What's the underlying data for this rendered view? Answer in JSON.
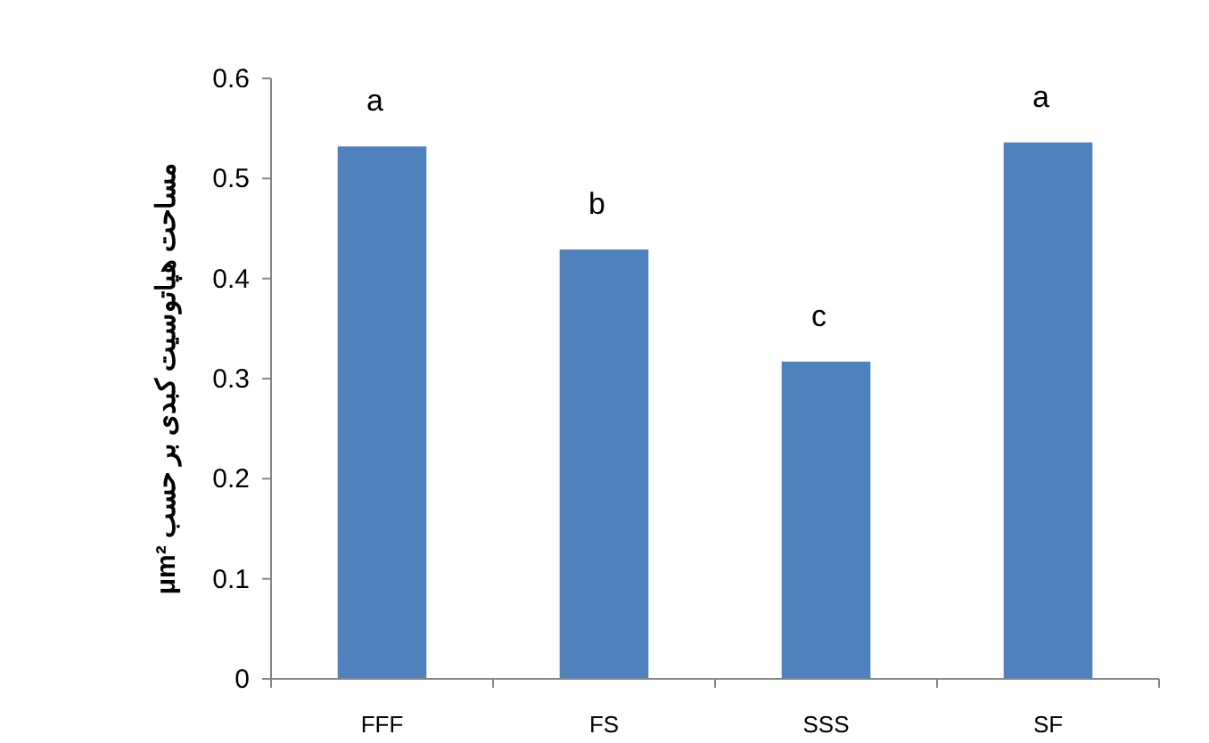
{
  "chart_data": {
    "type": "bar",
    "ylabel": "مساحت هپاتوسیت کبدی بر حسب μm²",
    "categories": [
      "FFF",
      "FS",
      "SSS",
      "SF"
    ],
    "values": [
      0.532,
      0.429,
      0.317,
      0.536
    ],
    "color": "#4f81bd",
    "ylim": [
      0,
      0.6
    ],
    "yticks": [
      0,
      0.1,
      0.2,
      0.3,
      0.4,
      0.5,
      0.6
    ],
    "grid": false,
    "annotations": [
      "a",
      "b",
      "c",
      "a"
    ]
  }
}
